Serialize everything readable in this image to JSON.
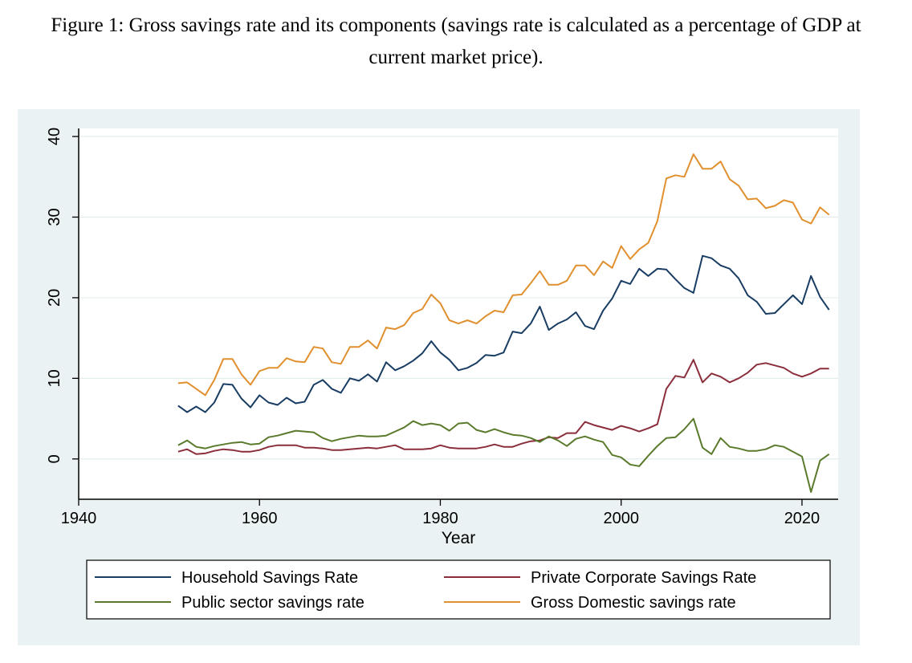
{
  "caption": {
    "line1": "Figure 1: Gross savings rate and its components (savings rate is calculated as a percentage of GDP at",
    "line2": "current market price)."
  },
  "chart_data": {
    "type": "line",
    "title": "Figure 1: Gross savings rate and its components (savings rate is calculated as a percentage of GDP at current market price).",
    "xlabel": "Year",
    "ylabel": "",
    "xlim": [
      1940,
      2024
    ],
    "ylim": [
      -5,
      41
    ],
    "xticks": [
      1940,
      1960,
      1980,
      2000,
      2020
    ],
    "yticks": [
      0,
      10,
      20,
      30,
      40
    ],
    "grid": true,
    "legend_position": "bottom",
    "x": [
      1951,
      1952,
      1953,
      1954,
      1955,
      1956,
      1957,
      1958,
      1959,
      1960,
      1961,
      1962,
      1963,
      1964,
      1965,
      1966,
      1967,
      1968,
      1969,
      1970,
      1971,
      1972,
      1973,
      1974,
      1975,
      1976,
      1977,
      1978,
      1979,
      1980,
      1981,
      1982,
      1983,
      1984,
      1985,
      1986,
      1987,
      1988,
      1989,
      1990,
      1991,
      1992,
      1993,
      1994,
      1995,
      1996,
      1997,
      1998,
      1999,
      2000,
      2001,
      2002,
      2003,
      2004,
      2005,
      2006,
      2007,
      2008,
      2009,
      2010,
      2011,
      2012,
      2013,
      2014,
      2015,
      2016,
      2017,
      2018,
      2019,
      2020,
      2021,
      2022,
      2023
    ],
    "series": [
      {
        "name": "Household Savings Rate",
        "color": "#1a3d63",
        "values": [
          6.6,
          5.8,
          6.5,
          5.8,
          7.0,
          9.3,
          9.2,
          7.5,
          6.4,
          7.9,
          7.0,
          6.7,
          7.6,
          6.9,
          7.1,
          9.2,
          9.8,
          8.7,
          8.2,
          10.0,
          9.7,
          10.5,
          9.6,
          12.0,
          11.0,
          11.5,
          12.2,
          13.1,
          14.6,
          13.2,
          12.3,
          11.0,
          11.3,
          11.9,
          12.9,
          12.8,
          13.2,
          15.8,
          15.6,
          16.8,
          18.9,
          16.0,
          16.8,
          17.3,
          18.2,
          16.5,
          16.1,
          18.4,
          19.9,
          22.1,
          21.7,
          23.6,
          22.7,
          23.6,
          23.5,
          22.3,
          21.2,
          20.6,
          25.2,
          24.9,
          24.0,
          23.6,
          22.4,
          20.3,
          19.5,
          18.0,
          18.1,
          19.2,
          20.3,
          19.2,
          22.7,
          20.1,
          18.5
        ]
      },
      {
        "name": "Private Corporate Savings Rate",
        "color": "#8b2e3c",
        "values": [
          0.9,
          1.2,
          0.6,
          0.7,
          1.0,
          1.2,
          1.1,
          0.9,
          0.9,
          1.1,
          1.5,
          1.7,
          1.7,
          1.7,
          1.4,
          1.4,
          1.3,
          1.1,
          1.1,
          1.2,
          1.3,
          1.4,
          1.3,
          1.5,
          1.7,
          1.2,
          1.2,
          1.2,
          1.3,
          1.7,
          1.4,
          1.3,
          1.3,
          1.3,
          1.5,
          1.8,
          1.5,
          1.5,
          1.9,
          2.2,
          2.3,
          2.7,
          2.6,
          3.2,
          3.2,
          4.6,
          4.2,
          3.9,
          3.6,
          4.1,
          3.8,
          3.4,
          3.8,
          4.3,
          8.7,
          10.3,
          10.1,
          12.3,
          9.5,
          10.6,
          10.2,
          9.5,
          10.0,
          10.7,
          11.7,
          11.9,
          11.6,
          11.3,
          10.6,
          10.2,
          10.6,
          11.2,
          11.2
        ]
      },
      {
        "name": "Public sector savings rate",
        "color": "#5a7a2c",
        "values": [
          1.7,
          2.3,
          1.5,
          1.3,
          1.6,
          1.8,
          2.0,
          2.1,
          1.8,
          1.9,
          2.7,
          2.9,
          3.2,
          3.5,
          3.4,
          3.3,
          2.6,
          2.2,
          2.5,
          2.7,
          2.9,
          2.8,
          2.8,
          2.9,
          3.4,
          3.9,
          4.7,
          4.2,
          4.4,
          4.2,
          3.5,
          4.4,
          4.5,
          3.6,
          3.3,
          3.7,
          3.3,
          3.0,
          2.9,
          2.6,
          2.1,
          2.8,
          2.3,
          1.6,
          2.5,
          2.8,
          2.4,
          2.1,
          0.5,
          0.2,
          -0.7,
          -0.9,
          0.4,
          1.6,
          2.6,
          2.7,
          3.7,
          5.0,
          1.4,
          0.6,
          2.6,
          1.5,
          1.3,
          1.0,
          1.0,
          1.2,
          1.7,
          1.5,
          0.9,
          0.3,
          -4.1,
          -0.2,
          0.6
        ]
      },
      {
        "name": "Gross Domestic savings rate",
        "color": "#e0902e",
        "values": [
          9.4,
          9.5,
          8.7,
          7.9,
          9.8,
          12.4,
          12.4,
          10.5,
          9.2,
          10.9,
          11.3,
          11.3,
          12.5,
          12.1,
          12.0,
          13.9,
          13.7,
          12.0,
          11.8,
          13.9,
          13.9,
          14.7,
          13.7,
          16.3,
          16.1,
          16.6,
          18.1,
          18.6,
          20.4,
          19.3,
          17.2,
          16.8,
          17.2,
          16.8,
          17.7,
          18.4,
          18.2,
          20.3,
          20.4,
          21.8,
          23.3,
          21.6,
          21.6,
          22.1,
          24.0,
          24.0,
          22.8,
          24.5,
          23.7,
          26.4,
          24.8,
          26.0,
          26.8,
          29.5,
          34.8,
          35.2,
          35.0,
          37.8,
          36.0,
          36.0,
          36.9,
          34.7,
          33.9,
          32.2,
          32.3,
          31.1,
          31.4,
          32.1,
          31.8,
          29.7,
          29.2,
          31.2,
          30.3
        ]
      }
    ]
  }
}
